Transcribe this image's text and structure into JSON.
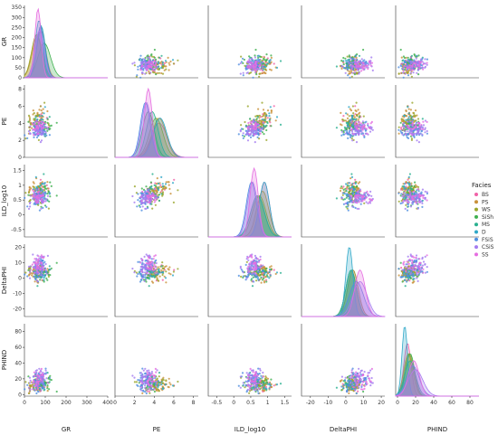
{
  "chart_data": {
    "type": "scatter",
    "variables": [
      "GR",
      "PE",
      "ILD_log10",
      "DeltaPHI",
      "PHIND"
    ],
    "axes": {
      "GR": {
        "range": [
          0,
          400
        ],
        "ticks": [
          0,
          100,
          200,
          300,
          400
        ]
      },
      "PE": {
        "range": [
          0,
          8.5
        ],
        "ticks": [
          0,
          2,
          4,
          6,
          8
        ]
      },
      "ILD_log10": {
        "range": [
          -0.75,
          1.7
        ],
        "ticks": [
          -0.5,
          0.0,
          0.5,
          1.0,
          1.5
        ]
      },
      "DeltaPHI": {
        "range": [
          -25,
          22
        ],
        "ticks": [
          -20,
          -10,
          0,
          10,
          20
        ]
      },
      "PHIND": {
        "range": [
          -2,
          90
        ],
        "ticks": [
          0,
          20,
          40,
          60,
          80
        ]
      }
    },
    "diag_y_ticks": {
      "GR": [
        0,
        50,
        100,
        150,
        200,
        250,
        300,
        350
      ]
    },
    "legend": {
      "title": "Facies",
      "placement": "right",
      "entries": [
        {
          "name": "BS",
          "color": "#f062a8"
        },
        {
          "name": "PS",
          "color": "#c9913a"
        },
        {
          "name": "WS",
          "color": "#9aa62c"
        },
        {
          "name": "SiSh",
          "color": "#3fb04f"
        },
        {
          "name": "MS",
          "color": "#2ab090"
        },
        {
          "name": "D",
          "color": "#2fa8c8"
        },
        {
          "name": "FSiS",
          "color": "#4f8fe0"
        },
        {
          "name": "CSiS",
          "color": "#a47cf0"
        },
        {
          "name": "SS",
          "color": "#e56de0"
        }
      ]
    },
    "groups": [
      {
        "name": "BS",
        "color": "#f062a8",
        "n": 14,
        "mean": {
          "GR": 80,
          "PE": 4.5,
          "ILD_log10": 0.9,
          "DeltaPHI": 4,
          "PHIND": 11
        },
        "sd": {
          "GR": 22,
          "PE": 0.8,
          "ILD_log10": 0.15,
          "DeltaPHI": 3,
          "PHIND": 4
        }
      },
      {
        "name": "PS",
        "color": "#c9913a",
        "n": 40,
        "mean": {
          "GR": 62,
          "PE": 4.5,
          "ILD_log10": 0.85,
          "DeltaPHI": 3,
          "PHIND": 12
        },
        "sd": {
          "GR": 25,
          "PE": 0.7,
          "ILD_log10": 0.18,
          "DeltaPHI": 3,
          "PHIND": 5
        }
      },
      {
        "name": "WS",
        "color": "#9aa62c",
        "n": 40,
        "mean": {
          "GR": 58,
          "PE": 4.2,
          "ILD_log10": 0.75,
          "DeltaPHI": 4,
          "PHIND": 13
        },
        "sd": {
          "GR": 24,
          "PE": 0.7,
          "ILD_log10": 0.2,
          "DeltaPHI": 3,
          "PHIND": 5
        }
      },
      {
        "name": "SiSh",
        "color": "#3fb04f",
        "n": 25,
        "mean": {
          "GR": 95,
          "PE": 3.4,
          "ILD_log10": 0.7,
          "DeltaPHI": 3,
          "PHIND": 14
        },
        "sd": {
          "GR": 30,
          "PE": 0.6,
          "ILD_log10": 0.2,
          "DeltaPHI": 3,
          "PHIND": 5
        }
      },
      {
        "name": "MS",
        "color": "#2ab090",
        "n": 12,
        "mean": {
          "GR": 80,
          "PE": 3.8,
          "ILD_log10": 0.7,
          "DeltaPHI": 3,
          "PHIND": 14
        },
        "sd": {
          "GR": 20,
          "PE": 0.6,
          "ILD_log10": 0.2,
          "DeltaPHI": 3,
          "PHIND": 6
        }
      },
      {
        "name": "D",
        "color": "#2fa8c8",
        "n": 12,
        "mean": {
          "GR": 70,
          "PE": 4.6,
          "ILD_log10": 0.9,
          "DeltaPHI": 2,
          "PHIND": 8
        },
        "sd": {
          "GR": 18,
          "PE": 0.7,
          "ILD_log10": 0.15,
          "DeltaPHI": 2,
          "PHIND": 3
        }
      },
      {
        "name": "FSiS",
        "color": "#4f8fe0",
        "n": 55,
        "mean": {
          "GR": 78,
          "PE": 3.1,
          "ILD_log10": 0.52,
          "DeltaPHI": 6,
          "PHIND": 17
        },
        "sd": {
          "GR": 20,
          "PE": 0.5,
          "ILD_log10": 0.15,
          "DeltaPHI": 4,
          "PHIND": 7
        }
      },
      {
        "name": "CSiS",
        "color": "#a47cf0",
        "n": 55,
        "mean": {
          "GR": 72,
          "PE": 3.2,
          "ILD_log10": 0.55,
          "DeltaPHI": 8,
          "PHIND": 20
        },
        "sd": {
          "GR": 22,
          "PE": 0.5,
          "ILD_log10": 0.15,
          "DeltaPHI": 4,
          "PHIND": 8
        }
      },
      {
        "name": "SS",
        "color": "#e56de0",
        "n": 30,
        "mean": {
          "GR": 65,
          "PE": 3.4,
          "ILD_log10": 0.6,
          "DeltaPHI": 8,
          "PHIND": 18
        },
        "sd": {
          "GR": 15,
          "PE": 0.4,
          "ILD_log10": 0.12,
          "DeltaPHI": 3,
          "PHIND": 6
        }
      }
    ]
  }
}
